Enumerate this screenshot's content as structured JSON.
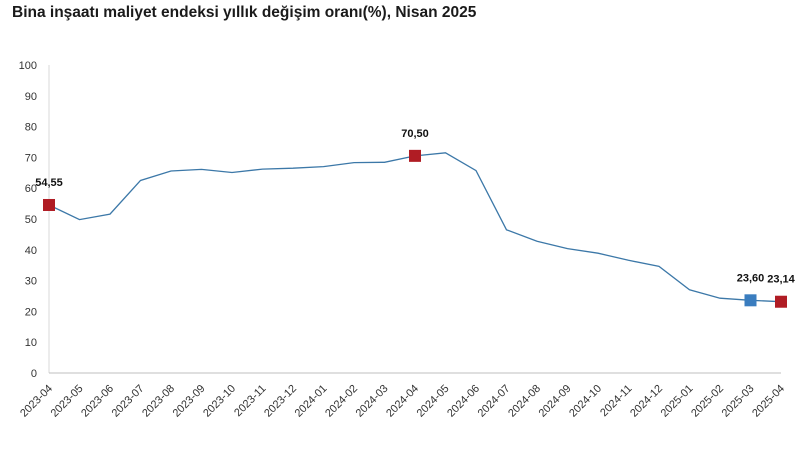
{
  "chart_data": {
    "type": "line",
    "title": "Bina inşaatı maliyet endeksi yıllık değişim oranı(%), Nisan 2025",
    "xlabel": "",
    "ylabel": "",
    "ylim": [
      0,
      100
    ],
    "yticks": [
      0,
      10,
      20,
      30,
      40,
      50,
      60,
      70,
      80,
      90,
      100
    ],
    "categories": [
      "2023-04",
      "2023-05",
      "2023-06",
      "2023-07",
      "2023-08",
      "2023-09",
      "2023-10",
      "2023-11",
      "2023-12",
      "2024-01",
      "2024-02",
      "2024-03",
      "2024-04",
      "2024-05",
      "2024-06",
      "2024-07",
      "2024-08",
      "2024-09",
      "2024-10",
      "2024-11",
      "2024-12",
      "2025-01",
      "2025-02",
      "2025-03",
      "2025-04"
    ],
    "series": [
      {
        "values": [
          54.55,
          49.8,
          51.6,
          62.5,
          65.6,
          66.1,
          65.1,
          66.2,
          66.5,
          67.0,
          68.3,
          68.4,
          70.5,
          71.5,
          65.7,
          46.5,
          42.8,
          40.4,
          38.9,
          36.6,
          34.6,
          27.0,
          24.3,
          23.6,
          23.14
        ],
        "color": "#3c78a8"
      }
    ],
    "highlights": [
      {
        "index": 0,
        "label": "54,55",
        "color": "#b01c24"
      },
      {
        "index": 12,
        "label": "70,50",
        "color": "#b01c24"
      },
      {
        "index": 23,
        "label": "23,60",
        "color": "#3a7dbf"
      },
      {
        "index": 24,
        "label": "23,14",
        "color": "#b01c24"
      }
    ],
    "grid": false,
    "legend": "none"
  }
}
